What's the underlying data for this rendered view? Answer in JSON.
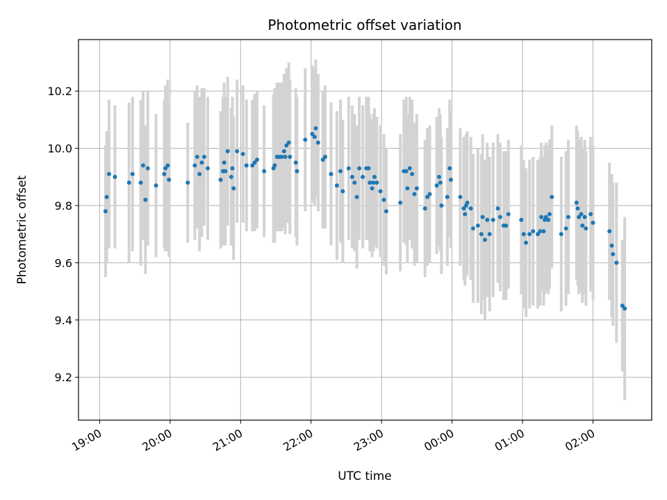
{
  "chart_data": {
    "type": "scatter",
    "title": "Photometric offset variation",
    "xlabel": "UTC time",
    "ylabel": "Photometric offset",
    "x_unit": "hours (UTC, after 00:00 = next day)",
    "xlim": [
      "18:42",
      "02:50"
    ],
    "ylim": [
      9.05,
      10.38
    ],
    "x_ticks": [
      "19:00",
      "20:00",
      "21:00",
      "22:00",
      "23:00",
      "00:00",
      "01:00",
      "02:00"
    ],
    "y_ticks": [
      "9.2",
      "9.4",
      "9.6",
      "9.8",
      "10.0",
      "10.2"
    ],
    "grid": true,
    "errorbar_color": "#d3d3d3",
    "point_color": "#1f77b4",
    "points": [
      {
        "t": "19:05",
        "y": 9.78,
        "err": 0.23
      },
      {
        "t": "19:06",
        "y": 9.83,
        "err": 0.23
      },
      {
        "t": "19:08",
        "y": 9.91,
        "err": 0.26
      },
      {
        "t": "19:13",
        "y": 9.9,
        "err": 0.25
      },
      {
        "t": "19:25",
        "y": 9.88,
        "err": 0.28
      },
      {
        "t": "19:28",
        "y": 9.91,
        "err": 0.27
      },
      {
        "t": "19:35",
        "y": 9.88,
        "err": 0.29
      },
      {
        "t": "19:37",
        "y": 9.94,
        "err": 0.26
      },
      {
        "t": "19:39",
        "y": 9.82,
        "err": 0.26
      },
      {
        "t": "19:41",
        "y": 9.93,
        "err": 0.27
      },
      {
        "t": "19:48",
        "y": 9.87,
        "err": 0.25
      },
      {
        "t": "19:55",
        "y": 9.91,
        "err": 0.26
      },
      {
        "t": "19:56",
        "y": 9.93,
        "err": 0.29
      },
      {
        "t": "19:58",
        "y": 9.94,
        "err": 0.3
      },
      {
        "t": "19:59",
        "y": 9.89,
        "err": 0.27
      },
      {
        "t": "20:15",
        "y": 9.88,
        "err": 0.21
      },
      {
        "t": "20:21",
        "y": 9.94,
        "err": 0.26
      },
      {
        "t": "20:23",
        "y": 9.97,
        "err": 0.25
      },
      {
        "t": "20:25",
        "y": 9.91,
        "err": 0.27
      },
      {
        "t": "20:27",
        "y": 9.95,
        "err": 0.26
      },
      {
        "t": "20:29",
        "y": 9.97,
        "err": 0.24
      },
      {
        "t": "20:32",
        "y": 9.93,
        "err": 0.25
      },
      {
        "t": "20:43",
        "y": 9.89,
        "err": 0.24
      },
      {
        "t": "20:45",
        "y": 9.92,
        "err": 0.26
      },
      {
        "t": "20:46",
        "y": 9.95,
        "err": 0.28
      },
      {
        "t": "20:47",
        "y": 9.92,
        "err": 0.26
      },
      {
        "t": "20:49",
        "y": 9.99,
        "err": 0.26
      },
      {
        "t": "20:52",
        "y": 9.9,
        "err": 0.24
      },
      {
        "t": "20:53",
        "y": 9.93,
        "err": 0.25
      },
      {
        "t": "20:54",
        "y": 9.86,
        "err": 0.25
      },
      {
        "t": "20:57",
        "y": 9.99,
        "err": 0.25
      },
      {
        "t": "21:02",
        "y": 9.98,
        "err": 0.24
      },
      {
        "t": "21:05",
        "y": 9.94,
        "err": 0.23
      },
      {
        "t": "21:10",
        "y": 9.94,
        "err": 0.23
      },
      {
        "t": "21:12",
        "y": 9.95,
        "err": 0.24
      },
      {
        "t": "21:14",
        "y": 9.96,
        "err": 0.24
      },
      {
        "t": "21:20",
        "y": 9.92,
        "err": 0.23
      },
      {
        "t": "21:28",
        "y": 9.93,
        "err": 0.26
      },
      {
        "t": "21:29",
        "y": 9.94,
        "err": 0.27
      },
      {
        "t": "21:31",
        "y": 9.97,
        "err": 0.26
      },
      {
        "t": "21:33",
        "y": 9.97,
        "err": 0.26
      },
      {
        "t": "21:35",
        "y": 9.97,
        "err": 0.26
      },
      {
        "t": "21:37",
        "y": 9.99,
        "err": 0.27
      },
      {
        "t": "21:38",
        "y": 9.97,
        "err": 0.27
      },
      {
        "t": "21:39",
        "y": 10.01,
        "err": 0.27
      },
      {
        "t": "21:41",
        "y": 10.02,
        "err": 0.28
      },
      {
        "t": "21:42",
        "y": 9.97,
        "err": 0.27
      },
      {
        "t": "21:47",
        "y": 9.95,
        "err": 0.26
      },
      {
        "t": "21:48",
        "y": 9.92,
        "err": 0.26
      },
      {
        "t": "21:55",
        "y": 10.03,
        "err": 0.25
      },
      {
        "t": "22:01",
        "y": 10.05,
        "err": 0.24
      },
      {
        "t": "22:03",
        "y": 10.04,
        "err": 0.24
      },
      {
        "t": "22:04",
        "y": 10.07,
        "err": 0.24
      },
      {
        "t": "22:06",
        "y": 10.02,
        "err": 0.24
      },
      {
        "t": "22:10",
        "y": 9.96,
        "err": 0.24
      },
      {
        "t": "22:12",
        "y": 9.97,
        "err": 0.25
      },
      {
        "t": "22:17",
        "y": 9.91,
        "err": 0.25
      },
      {
        "t": "22:22",
        "y": 9.87,
        "err": 0.26
      },
      {
        "t": "22:25",
        "y": 9.92,
        "err": 0.25
      },
      {
        "t": "22:27",
        "y": 9.85,
        "err": 0.25
      },
      {
        "t": "22:32",
        "y": 9.93,
        "err": 0.25
      },
      {
        "t": "22:35",
        "y": 9.9,
        "err": 0.25
      },
      {
        "t": "22:37",
        "y": 9.88,
        "err": 0.24
      },
      {
        "t": "22:39",
        "y": 9.83,
        "err": 0.25
      },
      {
        "t": "22:41",
        "y": 9.93,
        "err": 0.25
      },
      {
        "t": "22:44",
        "y": 9.9,
        "err": 0.25
      },
      {
        "t": "22:47",
        "y": 9.93,
        "err": 0.25
      },
      {
        "t": "22:49",
        "y": 9.93,
        "err": 0.25
      },
      {
        "t": "22:50",
        "y": 9.88,
        "err": 0.24
      },
      {
        "t": "22:52",
        "y": 9.86,
        "err": 0.24
      },
      {
        "t": "22:53",
        "y": 9.88,
        "err": 0.24
      },
      {
        "t": "22:54",
        "y": 9.9,
        "err": 0.24
      },
      {
        "t": "22:56",
        "y": 9.88,
        "err": 0.23
      },
      {
        "t": "22:59",
        "y": 9.85,
        "err": 0.23
      },
      {
        "t": "23:02",
        "y": 9.82,
        "err": 0.23
      },
      {
        "t": "23:04",
        "y": 9.78,
        "err": 0.22
      },
      {
        "t": "23:16",
        "y": 9.81,
        "err": 0.24
      },
      {
        "t": "23:19",
        "y": 9.92,
        "err": 0.25
      },
      {
        "t": "23:21",
        "y": 9.92,
        "err": 0.26
      },
      {
        "t": "23:22",
        "y": 9.86,
        "err": 0.26
      },
      {
        "t": "23:24",
        "y": 9.93,
        "err": 0.25
      },
      {
        "t": "23:26",
        "y": 9.91,
        "err": 0.26
      },
      {
        "t": "23:28",
        "y": 9.84,
        "err": 0.25
      },
      {
        "t": "23:30",
        "y": 9.86,
        "err": 0.26
      },
      {
        "t": "23:37",
        "y": 9.79,
        "err": 0.24
      },
      {
        "t": "23:39",
        "y": 9.83,
        "err": 0.24
      },
      {
        "t": "23:41",
        "y": 9.84,
        "err": 0.24
      },
      {
        "t": "23:47",
        "y": 9.87,
        "err": 0.24
      },
      {
        "t": "23:49",
        "y": 9.9,
        "err": 0.24
      },
      {
        "t": "23:50",
        "y": 9.88,
        "err": 0.24
      },
      {
        "t": "23:51",
        "y": 9.8,
        "err": 0.24
      },
      {
        "t": "23:56",
        "y": 9.83,
        "err": 0.24
      },
      {
        "t": "23:58",
        "y": 9.93,
        "err": 0.24
      },
      {
        "t": "23:59",
        "y": 9.89,
        "err": 0.24
      },
      {
        "t": "00:07",
        "y": 9.83,
        "err": 0.24
      },
      {
        "t": "00:10",
        "y": 9.79,
        "err": 0.25
      },
      {
        "t": "00:11",
        "y": 9.77,
        "err": 0.25
      },
      {
        "t": "00:12",
        "y": 9.8,
        "err": 0.25
      },
      {
        "t": "00:13",
        "y": 9.81,
        "err": 0.25
      },
      {
        "t": "00:16",
        "y": 9.79,
        "err": 0.25
      },
      {
        "t": "00:18",
        "y": 9.72,
        "err": 0.26
      },
      {
        "t": "00:22",
        "y": 9.73,
        "err": 0.27
      },
      {
        "t": "00:25",
        "y": 9.7,
        "err": 0.28
      },
      {
        "t": "00:26",
        "y": 9.76,
        "err": 0.29
      },
      {
        "t": "00:28",
        "y": 9.68,
        "err": 0.28
      },
      {
        "t": "00:30",
        "y": 9.75,
        "err": 0.27
      },
      {
        "t": "00:32",
        "y": 9.7,
        "err": 0.27
      },
      {
        "t": "00:35",
        "y": 9.75,
        "err": 0.27
      },
      {
        "t": "00:39",
        "y": 9.79,
        "err": 0.26
      },
      {
        "t": "00:41",
        "y": 9.76,
        "err": 0.26
      },
      {
        "t": "00:44",
        "y": 9.73,
        "err": 0.26
      },
      {
        "t": "00:46",
        "y": 9.73,
        "err": 0.26
      },
      {
        "t": "00:48",
        "y": 9.77,
        "err": 0.26
      },
      {
        "t": "00:59",
        "y": 9.75,
        "err": 0.26
      },
      {
        "t": "01:01",
        "y": 9.7,
        "err": 0.26
      },
      {
        "t": "01:03",
        "y": 9.67,
        "err": 0.26
      },
      {
        "t": "01:06",
        "y": 9.7,
        "err": 0.26
      },
      {
        "t": "01:09",
        "y": 9.71,
        "err": 0.26
      },
      {
        "t": "01:13",
        "y": 9.7,
        "err": 0.26
      },
      {
        "t": "01:15",
        "y": 9.71,
        "err": 0.26
      },
      {
        "t": "01:16",
        "y": 9.76,
        "err": 0.26
      },
      {
        "t": "01:18",
        "y": 9.71,
        "err": 0.26
      },
      {
        "t": "01:19",
        "y": 9.75,
        "err": 0.26
      },
      {
        "t": "01:20",
        "y": 9.76,
        "err": 0.26
      },
      {
        "t": "01:22",
        "y": 9.75,
        "err": 0.26
      },
      {
        "t": "01:23",
        "y": 9.77,
        "err": 0.26
      },
      {
        "t": "01:25",
        "y": 9.83,
        "err": 0.25
      },
      {
        "t": "01:33",
        "y": 9.7,
        "err": 0.27
      },
      {
        "t": "01:37",
        "y": 9.72,
        "err": 0.27
      },
      {
        "t": "01:39",
        "y": 9.76,
        "err": 0.27
      },
      {
        "t": "01:46",
        "y": 9.81,
        "err": 0.27
      },
      {
        "t": "01:47",
        "y": 9.79,
        "err": 0.27
      },
      {
        "t": "01:48",
        "y": 9.76,
        "err": 0.27
      },
      {
        "t": "01:50",
        "y": 9.77,
        "err": 0.27
      },
      {
        "t": "01:51",
        "y": 9.73,
        "err": 0.27
      },
      {
        "t": "01:53",
        "y": 9.76,
        "err": 0.27
      },
      {
        "t": "01:54",
        "y": 9.72,
        "err": 0.27
      },
      {
        "t": "01:58",
        "y": 9.77,
        "err": 0.27
      },
      {
        "t": "02:00",
        "y": 9.74,
        "err": 0.27
      },
      {
        "t": "02:14",
        "y": 9.71,
        "err": 0.24
      },
      {
        "t": "02:16",
        "y": 9.66,
        "err": 0.25
      },
      {
        "t": "02:17",
        "y": 9.63,
        "err": 0.25
      },
      {
        "t": "02:20",
        "y": 9.6,
        "err": 0.28
      },
      {
        "t": "02:25",
        "y": 9.45,
        "err": 0.23
      },
      {
        "t": "02:27",
        "y": 9.44,
        "err": 0.32
      }
    ]
  }
}
